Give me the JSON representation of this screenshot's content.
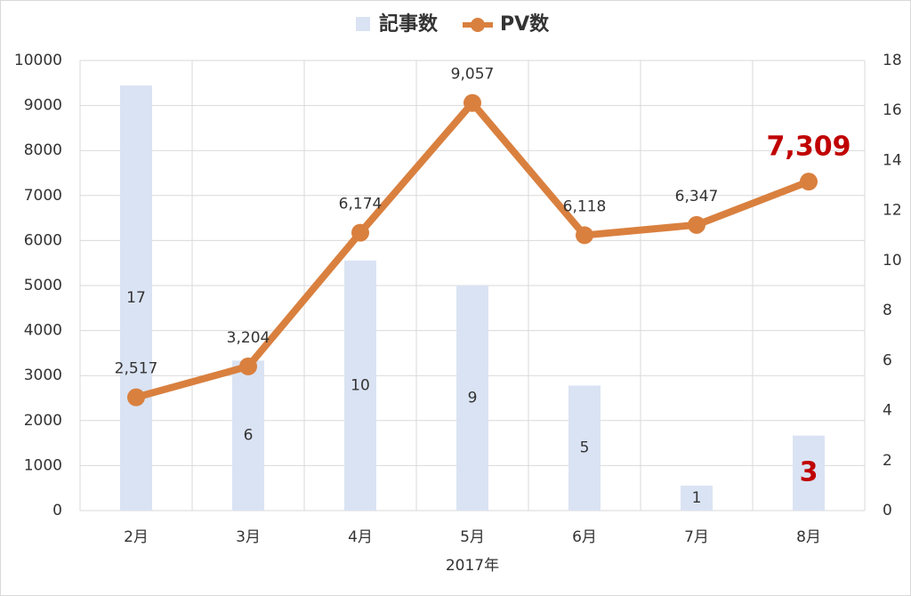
{
  "chart_data": {
    "type": "bar-line",
    "x_label": "2017年",
    "categories": [
      "2月",
      "3月",
      "4月",
      "5月",
      "6月",
      "7月",
      "8月"
    ],
    "series": [
      {
        "name": "記事数",
        "type": "bar",
        "axis": "y2",
        "color": "#dae3f3",
        "values": [
          17,
          6,
          10,
          9,
          5,
          1,
          3
        ]
      },
      {
        "name": "PV数",
        "type": "line",
        "axis": "y",
        "color": "#d9803f",
        "values": [
          2517,
          3204,
          6174,
          9057,
          6118,
          6347,
          7309
        ],
        "value_labels": [
          "2,517",
          "3,204",
          "6,174",
          "9,057",
          "6,118",
          "6,347",
          "7,309"
        ]
      }
    ],
    "highlight_index": 6,
    "highlight_color": "#c00000",
    "ylim": [
      0,
      10000
    ],
    "yticks": [
      0,
      1000,
      2000,
      3000,
      4000,
      5000,
      6000,
      7000,
      8000,
      9000,
      10000
    ],
    "y2lim": [
      0,
      18
    ],
    "y2ticks": [
      0,
      2,
      4,
      6,
      8,
      10,
      12,
      14,
      16,
      18
    ],
    "grid": true,
    "legend": "top"
  }
}
